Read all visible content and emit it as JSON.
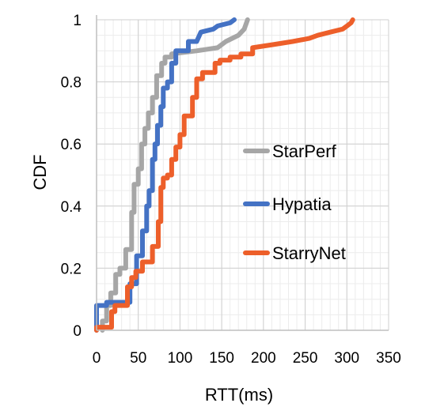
{
  "chart_data": {
    "type": "line",
    "xlabel": "RTT(ms)",
    "ylabel": "CDF",
    "xlim": [
      0,
      350
    ],
    "ylim": [
      0,
      1
    ],
    "x_ticks": [
      "0",
      "50",
      "100",
      "150",
      "200",
      "250",
      "300",
      "350"
    ],
    "y_ticks": [
      "0",
      "0.2",
      "0.4",
      "0.6",
      "0.8",
      "1"
    ],
    "grid": true,
    "legend_position": "right",
    "series": [
      {
        "name": "StarPerf",
        "color": "#a6a6a6",
        "points": [
          [
            7,
            0
          ],
          [
            7,
            0.03
          ],
          [
            12,
            0.03
          ],
          [
            12,
            0.08
          ],
          [
            17,
            0.08
          ],
          [
            17,
            0.12
          ],
          [
            23,
            0.12
          ],
          [
            23,
            0.18
          ],
          [
            28,
            0.18
          ],
          [
            28,
            0.2
          ],
          [
            35,
            0.2
          ],
          [
            35,
            0.26
          ],
          [
            42,
            0.26
          ],
          [
            42,
            0.38
          ],
          [
            45,
            0.38
          ],
          [
            45,
            0.47
          ],
          [
            50,
            0.47
          ],
          [
            50,
            0.52
          ],
          [
            54,
            0.52
          ],
          [
            54,
            0.6
          ],
          [
            58,
            0.6
          ],
          [
            58,
            0.65
          ],
          [
            62,
            0.65
          ],
          [
            62,
            0.7
          ],
          [
            67,
            0.7
          ],
          [
            67,
            0.75
          ],
          [
            72,
            0.75
          ],
          [
            72,
            0.82
          ],
          [
            78,
            0.82
          ],
          [
            78,
            0.86
          ],
          [
            82,
            0.86
          ],
          [
            82,
            0.88
          ],
          [
            90,
            0.88
          ],
          [
            90,
            0.89
          ],
          [
            120,
            0.9
          ],
          [
            145,
            0.91
          ],
          [
            155,
            0.93
          ],
          [
            170,
            0.95
          ],
          [
            177,
            0.97
          ],
          [
            181,
            1.0
          ]
        ]
      },
      {
        "name": "Hypatia",
        "color": "#4472c4",
        "points": [
          [
            0,
            0
          ],
          [
            0,
            0.08
          ],
          [
            12,
            0.08
          ],
          [
            12,
            0.09
          ],
          [
            40,
            0.09
          ],
          [
            40,
            0.15
          ],
          [
            48,
            0.15
          ],
          [
            48,
            0.24
          ],
          [
            55,
            0.24
          ],
          [
            55,
            0.32
          ],
          [
            60,
            0.32
          ],
          [
            60,
            0.4
          ],
          [
            63,
            0.4
          ],
          [
            63,
            0.45
          ],
          [
            67,
            0.45
          ],
          [
            67,
            0.55
          ],
          [
            70,
            0.55
          ],
          [
            70,
            0.6
          ],
          [
            73,
            0.6
          ],
          [
            73,
            0.66
          ],
          [
            77,
            0.66
          ],
          [
            77,
            0.72
          ],
          [
            80,
            0.72
          ],
          [
            80,
            0.78
          ],
          [
            85,
            0.78
          ],
          [
            85,
            0.8
          ],
          [
            90,
            0.8
          ],
          [
            90,
            0.86
          ],
          [
            95,
            0.86
          ],
          [
            95,
            0.9
          ],
          [
            110,
            0.9
          ],
          [
            110,
            0.93
          ],
          [
            120,
            0.93
          ],
          [
            125,
            0.96
          ],
          [
            140,
            0.97
          ],
          [
            145,
            0.98
          ],
          [
            160,
            0.99
          ],
          [
            165,
            1.0
          ]
        ]
      },
      {
        "name": "StarryNet",
        "color": "#ed5f2a",
        "points": [
          [
            0,
            0
          ],
          [
            0,
            0.01
          ],
          [
            18,
            0.01
          ],
          [
            18,
            0.06
          ],
          [
            22,
            0.06
          ],
          [
            22,
            0.08
          ],
          [
            37,
            0.08
          ],
          [
            37,
            0.14
          ],
          [
            42,
            0.14
          ],
          [
            42,
            0.17
          ],
          [
            47,
            0.17
          ],
          [
            47,
            0.19
          ],
          [
            55,
            0.19
          ],
          [
            55,
            0.22
          ],
          [
            67,
            0.22
          ],
          [
            67,
            0.27
          ],
          [
            74,
            0.27
          ],
          [
            74,
            0.35
          ],
          [
            77,
            0.35
          ],
          [
            77,
            0.46
          ],
          [
            80,
            0.46
          ],
          [
            80,
            0.49
          ],
          [
            85,
            0.49
          ],
          [
            85,
            0.5
          ],
          [
            90,
            0.5
          ],
          [
            90,
            0.55
          ],
          [
            95,
            0.55
          ],
          [
            95,
            0.59
          ],
          [
            100,
            0.59
          ],
          [
            100,
            0.63
          ],
          [
            105,
            0.63
          ],
          [
            105,
            0.69
          ],
          [
            115,
            0.69
          ],
          [
            115,
            0.75
          ],
          [
            120,
            0.75
          ],
          [
            120,
            0.81
          ],
          [
            127,
            0.81
          ],
          [
            127,
            0.83
          ],
          [
            142,
            0.83
          ],
          [
            142,
            0.86
          ],
          [
            148,
            0.86
          ],
          [
            148,
            0.87
          ],
          [
            160,
            0.87
          ],
          [
            160,
            0.88
          ],
          [
            173,
            0.88
          ],
          [
            173,
            0.89
          ],
          [
            187,
            0.89
          ],
          [
            187,
            0.91
          ],
          [
            212,
            0.92
          ],
          [
            235,
            0.93
          ],
          [
            255,
            0.94
          ],
          [
            265,
            0.95
          ],
          [
            280,
            0.96
          ],
          [
            295,
            0.97
          ],
          [
            300,
            0.98
          ],
          [
            305,
            0.99
          ],
          [
            307,
            1.0
          ]
        ]
      }
    ]
  }
}
